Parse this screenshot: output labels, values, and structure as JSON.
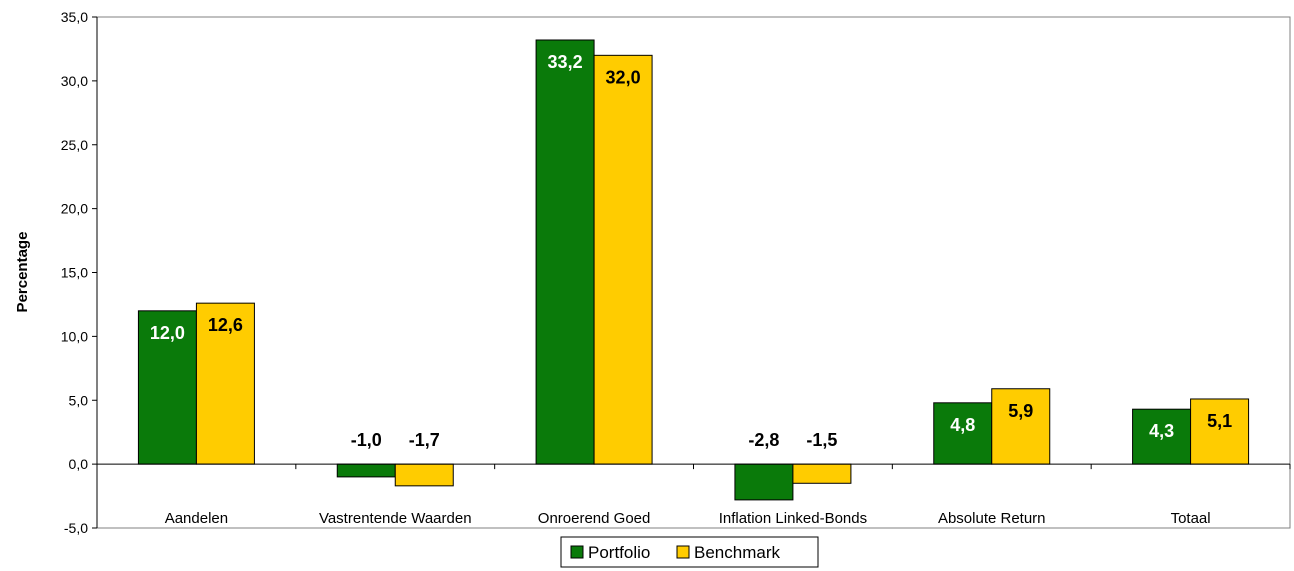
{
  "chart_data": {
    "type": "bar",
    "categories": [
      "Aandelen",
      "Vastrentende Waarden",
      "Onroerend Goed",
      "Inflation Linked-Bonds",
      "Absolute Return",
      "Totaal"
    ],
    "series": [
      {
        "name": "Portfolio",
        "values": [
          12.0,
          -1.0,
          33.2,
          -2.8,
          4.8,
          4.3
        ],
        "labels": [
          "12,0",
          "-1,0",
          "33,2",
          "-2,8",
          "4,8",
          "4,3"
        ],
        "color": "#0a7a0a"
      },
      {
        "name": "Benchmark",
        "values": [
          12.6,
          -1.7,
          32.0,
          -1.5,
          5.9,
          5.1
        ],
        "labels": [
          "12,6",
          "-1,7",
          "32,0",
          "-1,5",
          "5,9",
          "5,1"
        ],
        "color": "#ffcc00"
      }
    ],
    "ylabel": "Percentage",
    "xlabel": "",
    "title": "",
    "ylim": [
      -5,
      35
    ],
    "yticks": [
      -5,
      0,
      5,
      10,
      15,
      20,
      25,
      30,
      35
    ],
    "ytick_labels": [
      "-5,0",
      "0,0",
      "5,0",
      "10,0",
      "15,0",
      "20,0",
      "25,0",
      "30,0",
      "35,0"
    ],
    "grid": false,
    "legend_position": "bottom-center"
  }
}
